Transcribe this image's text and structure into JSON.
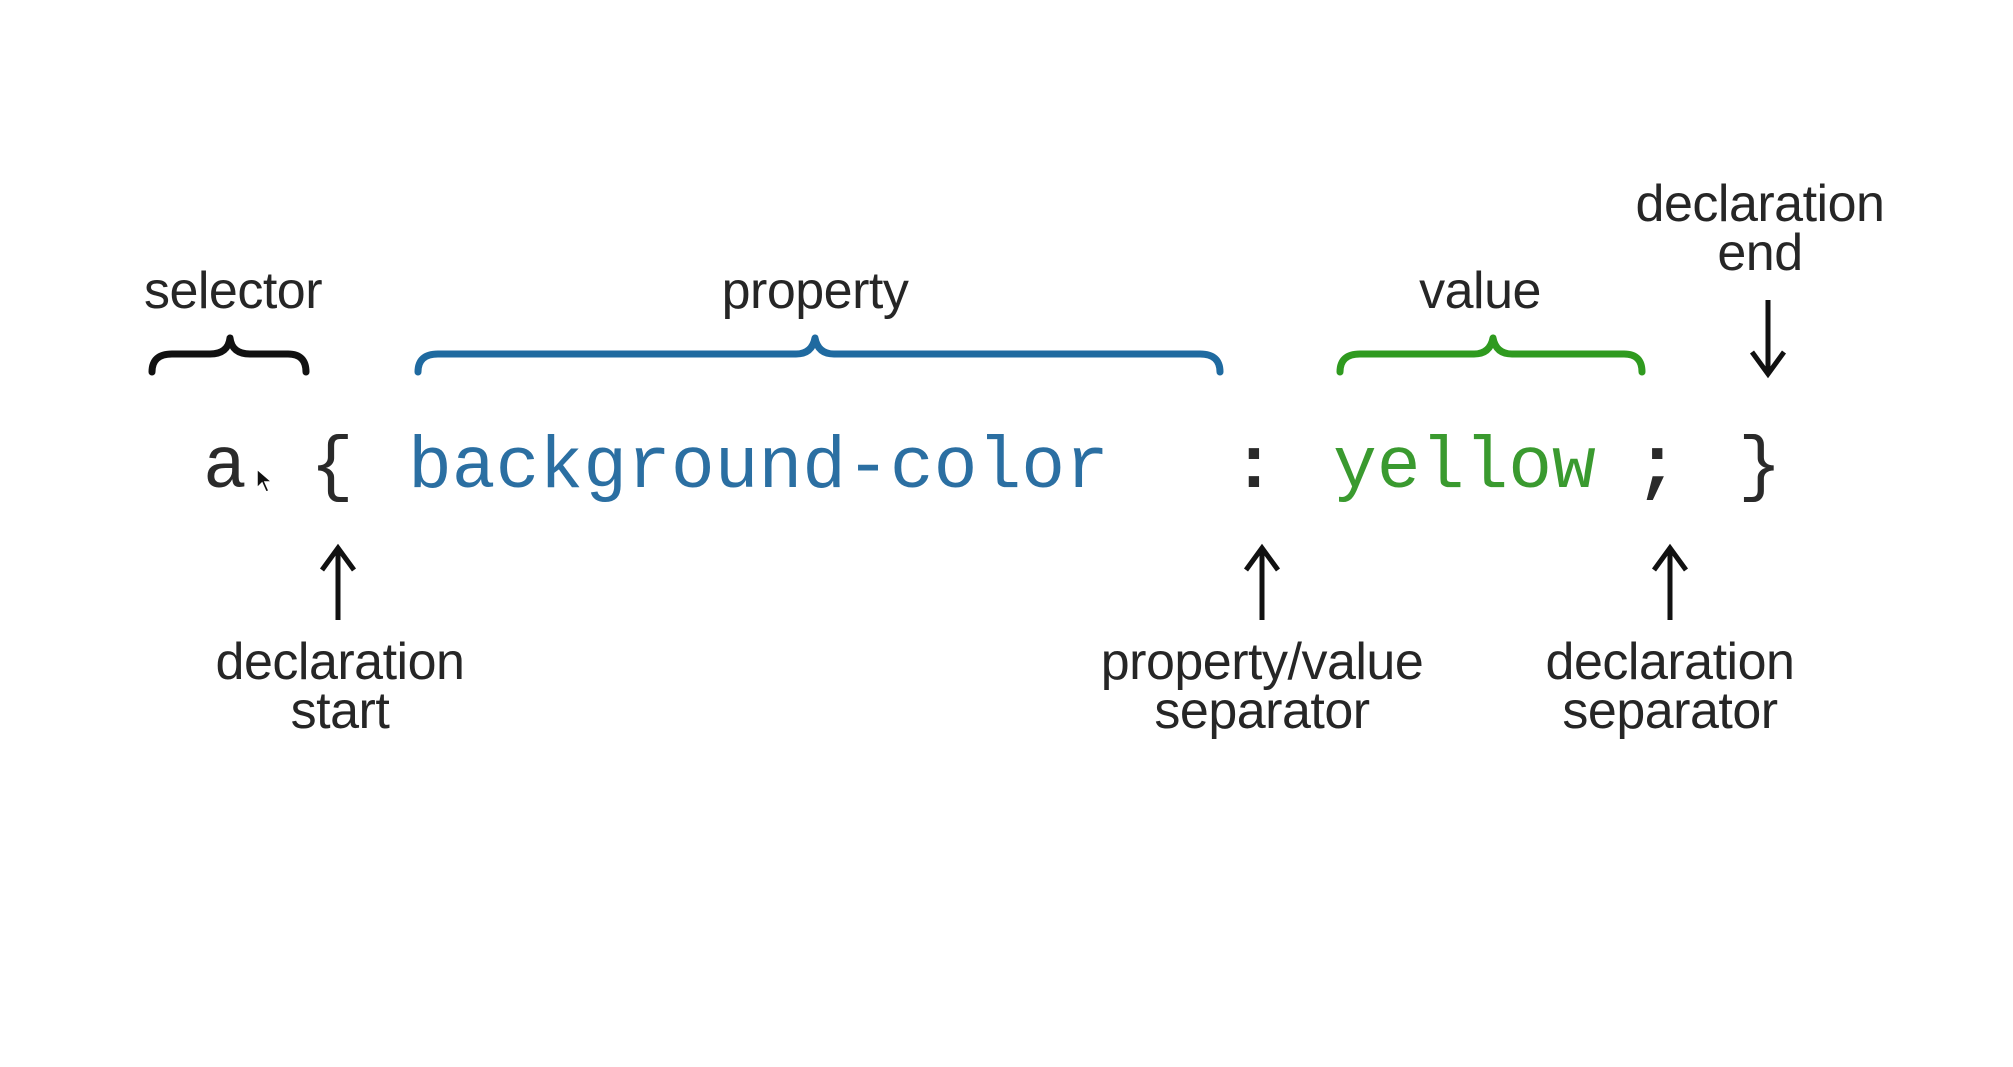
{
  "labels": {
    "selector": "selector",
    "property": "property",
    "value": "value",
    "declaration_end": [
      "declaration",
      "end"
    ],
    "declaration_start": [
      "declaration",
      "start"
    ],
    "property_value_separator": [
      "property/value",
      "separator"
    ],
    "declaration_separator": [
      "declaration",
      "separator"
    ]
  },
  "code": {
    "selector": "a",
    "open_brace": "{",
    "property": "background-color",
    "colon": ":",
    "value": "yellow",
    "semicolon": ";",
    "close_brace": "}"
  },
  "colors": {
    "selector_brace": "#111111",
    "property_brace": "#1f6aa0",
    "value_brace": "#2f9a1f",
    "arrow": "#111111"
  }
}
